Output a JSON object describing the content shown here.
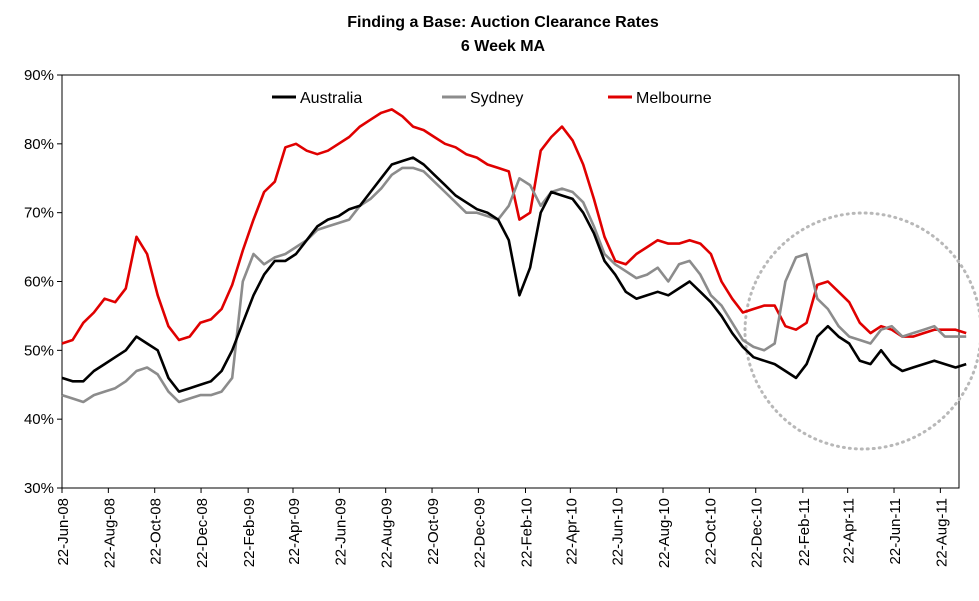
{
  "chart_data": {
    "type": "line",
    "title": "Finding a Base: Auction Clearance Rates",
    "subtitle": "6 Week MA",
    "xlabel": "",
    "ylabel": "",
    "ylim": [
      0.3,
      0.9
    ],
    "y_ticks": [
      "30%",
      "40%",
      "50%",
      "60%",
      "70%",
      "80%",
      "90%"
    ],
    "x_ticks": [
      "22-Jun-08",
      "22-Aug-08",
      "22-Oct-08",
      "22-Dec-08",
      "22-Feb-09",
      "22-Apr-09",
      "22-Jun-09",
      "22-Aug-09",
      "22-Oct-09",
      "22-Dec-09",
      "22-Feb-10",
      "22-Apr-10",
      "22-Jun-10",
      "22-Aug-10",
      "22-Oct-10",
      "22-Dec-10",
      "22-Feb-11",
      "22-Apr-11",
      "22-Jun-11",
      "22-Aug-11"
    ],
    "legend_position": "top",
    "grid": false,
    "annotation": "dotted circle highlighting Dec-10 to Aug-11",
    "series": [
      {
        "name": "Australia",
        "color": "#000000",
        "points": [
          [
            "2008-06-22",
            0.46
          ],
          [
            "2008-07-06",
            0.455
          ],
          [
            "2008-07-20",
            0.455
          ],
          [
            "2008-08-03",
            0.47
          ],
          [
            "2008-08-17",
            0.48
          ],
          [
            "2008-08-31",
            0.49
          ],
          [
            "2008-09-14",
            0.5
          ],
          [
            "2008-09-28",
            0.52
          ],
          [
            "2008-10-12",
            0.51
          ],
          [
            "2008-10-26",
            0.5
          ],
          [
            "2008-11-09",
            0.46
          ],
          [
            "2008-11-23",
            0.44
          ],
          [
            "2008-12-07",
            0.445
          ],
          [
            "2008-12-21",
            0.45
          ],
          [
            "2009-01-04",
            0.455
          ],
          [
            "2009-01-18",
            0.47
          ],
          [
            "2009-02-01",
            0.5
          ],
          [
            "2009-02-15",
            0.54
          ],
          [
            "2009-03-01",
            0.58
          ],
          [
            "2009-03-15",
            0.61
          ],
          [
            "2009-03-29",
            0.63
          ],
          [
            "2009-04-12",
            0.63
          ],
          [
            "2009-04-26",
            0.64
          ],
          [
            "2009-05-10",
            0.66
          ],
          [
            "2009-05-24",
            0.68
          ],
          [
            "2009-06-07",
            0.69
          ],
          [
            "2009-06-21",
            0.695
          ],
          [
            "2009-07-05",
            0.705
          ],
          [
            "2009-07-19",
            0.71
          ],
          [
            "2009-08-02",
            0.73
          ],
          [
            "2009-08-16",
            0.75
          ],
          [
            "2009-08-30",
            0.77
          ],
          [
            "2009-09-13",
            0.775
          ],
          [
            "2009-09-27",
            0.78
          ],
          [
            "2009-10-11",
            0.77
          ],
          [
            "2009-10-25",
            0.755
          ],
          [
            "2009-11-08",
            0.74
          ],
          [
            "2009-11-22",
            0.725
          ],
          [
            "2009-12-06",
            0.715
          ],
          [
            "2009-12-20",
            0.705
          ],
          [
            "2010-01-03",
            0.7
          ],
          [
            "2010-01-17",
            0.69
          ],
          [
            "2010-01-31",
            0.66
          ],
          [
            "2010-02-14",
            0.58
          ],
          [
            "2010-02-28",
            0.62
          ],
          [
            "2010-03-14",
            0.7
          ],
          [
            "2010-03-28",
            0.73
          ],
          [
            "2010-04-11",
            0.725
          ],
          [
            "2010-04-25",
            0.72
          ],
          [
            "2010-05-09",
            0.7
          ],
          [
            "2010-05-23",
            0.67
          ],
          [
            "2010-06-06",
            0.63
          ],
          [
            "2010-06-20",
            0.61
          ],
          [
            "2010-07-04",
            0.585
          ],
          [
            "2010-07-18",
            0.575
          ],
          [
            "2010-08-01",
            0.58
          ],
          [
            "2010-08-15",
            0.585
          ],
          [
            "2010-08-29",
            0.58
          ],
          [
            "2010-09-12",
            0.59
          ],
          [
            "2010-09-26",
            0.6
          ],
          [
            "2010-10-10",
            0.585
          ],
          [
            "2010-10-24",
            0.57
          ],
          [
            "2010-11-07",
            0.55
          ],
          [
            "2010-11-21",
            0.525
          ],
          [
            "2010-12-05",
            0.505
          ],
          [
            "2010-12-19",
            0.49
          ],
          [
            "2011-01-02",
            0.485
          ],
          [
            "2011-01-16",
            0.48
          ],
          [
            "2011-01-30",
            0.47
          ],
          [
            "2011-02-13",
            0.46
          ],
          [
            "2011-02-27",
            0.48
          ],
          [
            "2011-03-13",
            0.52
          ],
          [
            "2011-03-27",
            0.535
          ],
          [
            "2011-04-10",
            0.52
          ],
          [
            "2011-04-24",
            0.51
          ],
          [
            "2011-05-08",
            0.485
          ],
          [
            "2011-05-22",
            0.48
          ],
          [
            "2011-06-05",
            0.5
          ],
          [
            "2011-06-19",
            0.48
          ],
          [
            "2011-07-03",
            0.47
          ],
          [
            "2011-07-17",
            0.475
          ],
          [
            "2011-07-31",
            0.48
          ],
          [
            "2011-08-14",
            0.485
          ],
          [
            "2011-08-28",
            0.48
          ],
          [
            "2011-09-11",
            0.475
          ],
          [
            "2011-09-25",
            0.48
          ]
        ]
      },
      {
        "name": "Sydney",
        "color": "#8c8c8c",
        "points": [
          [
            "2008-06-22",
            0.435
          ],
          [
            "2008-07-06",
            0.43
          ],
          [
            "2008-07-20",
            0.425
          ],
          [
            "2008-08-03",
            0.435
          ],
          [
            "2008-08-17",
            0.44
          ],
          [
            "2008-08-31",
            0.445
          ],
          [
            "2008-09-14",
            0.455
          ],
          [
            "2008-09-28",
            0.47
          ],
          [
            "2008-10-12",
            0.475
          ],
          [
            "2008-10-26",
            0.465
          ],
          [
            "2008-11-09",
            0.44
          ],
          [
            "2008-11-23",
            0.425
          ],
          [
            "2008-12-07",
            0.43
          ],
          [
            "2008-12-21",
            0.435
          ],
          [
            "2009-01-04",
            0.435
          ],
          [
            "2009-01-18",
            0.44
          ],
          [
            "2009-02-01",
            0.46
          ],
          [
            "2009-02-15",
            0.6
          ],
          [
            "2009-03-01",
            0.64
          ],
          [
            "2009-03-15",
            0.625
          ],
          [
            "2009-03-29",
            0.635
          ],
          [
            "2009-04-12",
            0.64
          ],
          [
            "2009-04-26",
            0.65
          ],
          [
            "2009-05-10",
            0.66
          ],
          [
            "2009-05-24",
            0.675
          ],
          [
            "2009-06-07",
            0.68
          ],
          [
            "2009-06-21",
            0.685
          ],
          [
            "2009-07-05",
            0.69
          ],
          [
            "2009-07-19",
            0.71
          ],
          [
            "2009-08-02",
            0.72
          ],
          [
            "2009-08-16",
            0.735
          ],
          [
            "2009-08-30",
            0.755
          ],
          [
            "2009-09-13",
            0.765
          ],
          [
            "2009-09-27",
            0.765
          ],
          [
            "2009-10-11",
            0.76
          ],
          [
            "2009-10-25",
            0.745
          ],
          [
            "2009-11-08",
            0.73
          ],
          [
            "2009-11-22",
            0.715
          ],
          [
            "2009-12-06",
            0.7
          ],
          [
            "2009-12-20",
            0.7
          ],
          [
            "2010-01-03",
            0.695
          ],
          [
            "2010-01-17",
            0.69
          ],
          [
            "2010-01-31",
            0.71
          ],
          [
            "2010-02-14",
            0.75
          ],
          [
            "2010-02-28",
            0.74
          ],
          [
            "2010-03-14",
            0.71
          ],
          [
            "2010-03-28",
            0.73
          ],
          [
            "2010-04-11",
            0.735
          ],
          [
            "2010-04-25",
            0.73
          ],
          [
            "2010-05-09",
            0.715
          ],
          [
            "2010-05-23",
            0.68
          ],
          [
            "2010-06-06",
            0.64
          ],
          [
            "2010-06-20",
            0.625
          ],
          [
            "2010-07-04",
            0.615
          ],
          [
            "2010-07-18",
            0.605
          ],
          [
            "2010-08-01",
            0.61
          ],
          [
            "2010-08-15",
            0.62
          ],
          [
            "2010-08-29",
            0.6
          ],
          [
            "2010-09-12",
            0.625
          ],
          [
            "2010-09-26",
            0.63
          ],
          [
            "2010-10-10",
            0.61
          ],
          [
            "2010-10-24",
            0.58
          ],
          [
            "2010-11-07",
            0.565
          ],
          [
            "2010-11-21",
            0.54
          ],
          [
            "2010-12-05",
            0.515
          ],
          [
            "2010-12-19",
            0.505
          ],
          [
            "2011-01-02",
            0.5
          ],
          [
            "2011-01-16",
            0.51
          ],
          [
            "2011-01-30",
            0.6
          ],
          [
            "2011-02-13",
            0.635
          ],
          [
            "2011-02-27",
            0.64
          ],
          [
            "2011-03-13",
            0.575
          ],
          [
            "2011-03-27",
            0.56
          ],
          [
            "2011-04-10",
            0.535
          ],
          [
            "2011-04-24",
            0.52
          ],
          [
            "2011-05-08",
            0.515
          ],
          [
            "2011-05-22",
            0.51
          ],
          [
            "2011-06-05",
            0.53
          ],
          [
            "2011-06-19",
            0.535
          ],
          [
            "2011-07-03",
            0.52
          ],
          [
            "2011-07-17",
            0.525
          ],
          [
            "2011-07-31",
            0.53
          ],
          [
            "2011-08-14",
            0.535
          ],
          [
            "2011-08-28",
            0.52
          ],
          [
            "2011-09-11",
            0.52
          ],
          [
            "2011-09-25",
            0.52
          ]
        ]
      },
      {
        "name": "Melbourne",
        "color": "#e00000",
        "points": [
          [
            "2008-06-22",
            0.51
          ],
          [
            "2008-07-06",
            0.515
          ],
          [
            "2008-07-20",
            0.54
          ],
          [
            "2008-08-03",
            0.555
          ],
          [
            "2008-08-17",
            0.575
          ],
          [
            "2008-08-31",
            0.57
          ],
          [
            "2008-09-14",
            0.59
          ],
          [
            "2008-09-28",
            0.665
          ],
          [
            "2008-10-12",
            0.64
          ],
          [
            "2008-10-26",
            0.58
          ],
          [
            "2008-11-09",
            0.535
          ],
          [
            "2008-11-23",
            0.515
          ],
          [
            "2008-12-07",
            0.52
          ],
          [
            "2008-12-21",
            0.54
          ],
          [
            "2009-01-04",
            0.545
          ],
          [
            "2009-01-18",
            0.56
          ],
          [
            "2009-02-01",
            0.595
          ],
          [
            "2009-02-15",
            0.645
          ],
          [
            "2009-03-01",
            0.69
          ],
          [
            "2009-03-15",
            0.73
          ],
          [
            "2009-03-29",
            0.745
          ],
          [
            "2009-04-12",
            0.795
          ],
          [
            "2009-04-26",
            0.8
          ],
          [
            "2009-05-10",
            0.79
          ],
          [
            "2009-05-24",
            0.785
          ],
          [
            "2009-06-07",
            0.79
          ],
          [
            "2009-06-21",
            0.8
          ],
          [
            "2009-07-05",
            0.81
          ],
          [
            "2009-07-19",
            0.825
          ],
          [
            "2009-08-02",
            0.835
          ],
          [
            "2009-08-16",
            0.845
          ],
          [
            "2009-08-30",
            0.85
          ],
          [
            "2009-09-13",
            0.84
          ],
          [
            "2009-09-27",
            0.825
          ],
          [
            "2009-10-11",
            0.82
          ],
          [
            "2009-10-25",
            0.81
          ],
          [
            "2009-11-08",
            0.8
          ],
          [
            "2009-11-22",
            0.795
          ],
          [
            "2009-12-06",
            0.785
          ],
          [
            "2009-12-20",
            0.78
          ],
          [
            "2010-01-03",
            0.77
          ],
          [
            "2010-01-17",
            0.765
          ],
          [
            "2010-01-31",
            0.76
          ],
          [
            "2010-02-14",
            0.69
          ],
          [
            "2010-02-28",
            0.7
          ],
          [
            "2010-03-14",
            0.79
          ],
          [
            "2010-03-28",
            0.81
          ],
          [
            "2010-04-11",
            0.825
          ],
          [
            "2010-04-25",
            0.805
          ],
          [
            "2010-05-09",
            0.77
          ],
          [
            "2010-05-23",
            0.72
          ],
          [
            "2010-06-06",
            0.665
          ],
          [
            "2010-06-20",
            0.63
          ],
          [
            "2010-07-04",
            0.625
          ],
          [
            "2010-07-18",
            0.64
          ],
          [
            "2010-08-01",
            0.65
          ],
          [
            "2010-08-15",
            0.66
          ],
          [
            "2010-08-29",
            0.655
          ],
          [
            "2010-09-12",
            0.655
          ],
          [
            "2010-09-26",
            0.66
          ],
          [
            "2010-10-10",
            0.655
          ],
          [
            "2010-10-24",
            0.64
          ],
          [
            "2010-11-07",
            0.6
          ],
          [
            "2010-11-21",
            0.575
          ],
          [
            "2010-12-05",
            0.555
          ],
          [
            "2010-12-19",
            0.56
          ],
          [
            "2011-01-02",
            0.565
          ],
          [
            "2011-01-16",
            0.565
          ],
          [
            "2011-01-30",
            0.535
          ],
          [
            "2011-02-13",
            0.53
          ],
          [
            "2011-02-27",
            0.54
          ],
          [
            "2011-03-13",
            0.595
          ],
          [
            "2011-03-27",
            0.6
          ],
          [
            "2011-04-10",
            0.585
          ],
          [
            "2011-04-24",
            0.57
          ],
          [
            "2011-05-08",
            0.54
          ],
          [
            "2011-05-22",
            0.525
          ],
          [
            "2011-06-05",
            0.535
          ],
          [
            "2011-06-19",
            0.53
          ],
          [
            "2011-07-03",
            0.52
          ],
          [
            "2011-07-17",
            0.52
          ],
          [
            "2011-07-31",
            0.525
          ],
          [
            "2011-08-14",
            0.53
          ],
          [
            "2011-08-28",
            0.53
          ],
          [
            "2011-09-11",
            0.53
          ],
          [
            "2011-09-25",
            0.525
          ]
        ]
      }
    ]
  }
}
